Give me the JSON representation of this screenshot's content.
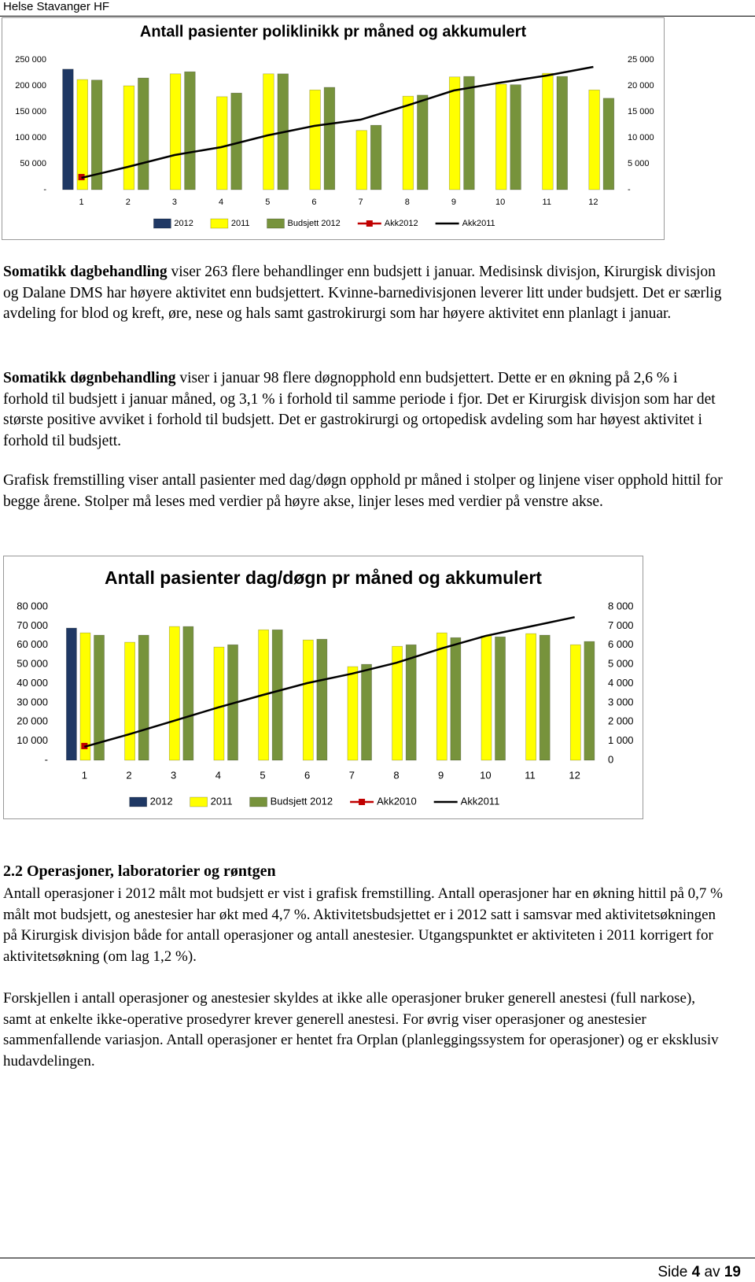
{
  "header": {
    "title": "Helse Stavanger HF"
  },
  "chart_data": [
    {
      "type": "bar",
      "title": "Antall pasienter poliklinikk pr måned og akkumulert",
      "categories": [
        "1",
        "2",
        "3",
        "4",
        "5",
        "6",
        "7",
        "8",
        "9",
        "10",
        "11",
        "12"
      ],
      "series": [
        {
          "name": "2012",
          "type": "bar",
          "color": "#1f3864",
          "axis": "y2",
          "values": [
            23200,
            null,
            null,
            null,
            null,
            null,
            null,
            null,
            null,
            null,
            null,
            null
          ]
        },
        {
          "name": "2011",
          "type": "bar",
          "color": "#ffff00",
          "axis": "y2",
          "values": [
            21200,
            20000,
            22300,
            17900,
            22300,
            19200,
            11400,
            18000,
            21700,
            20300,
            22400,
            19200
          ]
        },
        {
          "name": "Budsjett 2012",
          "type": "bar",
          "color": "#77933c",
          "axis": "y2",
          "values": [
            21100,
            21500,
            22700,
            18600,
            22300,
            19700,
            12400,
            18200,
            21800,
            20200,
            21800,
            17600
          ]
        },
        {
          "name": "Akk2012",
          "type": "line",
          "color": "#c00000",
          "marker": "square",
          "values": [
            24200,
            null,
            null,
            null,
            null,
            null,
            null,
            null,
            null,
            null,
            null,
            null
          ]
        },
        {
          "name": "Akk2011",
          "type": "line",
          "color": "#000000",
          "values": [
            22700,
            43900,
            66700,
            81800,
            104500,
            122700,
            134800,
            162100,
            190900,
            206100,
            219700,
            236400
          ]
        }
      ],
      "ylim": [
        0,
        250000
      ],
      "yticks": [
        {
          "value": 0,
          "label": "-"
        },
        {
          "value": 50000,
          "label": "50 000"
        },
        {
          "value": 100000,
          "label": "100 000"
        },
        {
          "value": 150000,
          "label": "150 000"
        },
        {
          "value": 200000,
          "label": "200 000"
        },
        {
          "value": 250000,
          "label": "250 000"
        }
      ],
      "y2lim": [
        0,
        25000
      ],
      "y2ticks": [
        {
          "value": 0,
          "label": "-"
        },
        {
          "value": 5000,
          "label": "5 000"
        },
        {
          "value": 10000,
          "label": "10 000"
        },
        {
          "value": 15000,
          "label": "15 000"
        },
        {
          "value": 20000,
          "label": "20 000"
        },
        {
          "value": 25000,
          "label": "25 000"
        }
      ],
      "legend": "bottom"
    },
    {
      "type": "bar",
      "title": "Antall pasienter dag/døgn pr måned og akkumulert",
      "categories": [
        "1",
        "2",
        "3",
        "4",
        "5",
        "6",
        "7",
        "8",
        "9",
        "10",
        "11",
        "12"
      ],
      "series": [
        {
          "name": "2012",
          "type": "bar",
          "color": "#1f3864",
          "axis": "y2",
          "values": [
            6890,
            null,
            null,
            null,
            null,
            null,
            null,
            null,
            null,
            null,
            null,
            null
          ]
        },
        {
          "name": "2011",
          "type": "bar",
          "color": "#ffff00",
          "axis": "y2",
          "values": [
            6640,
            6150,
            6970,
            5900,
            6800,
            6270,
            4880,
            5940,
            6640,
            6480,
            6600,
            6020
          ]
        },
        {
          "name": "Budsjett 2012",
          "type": "bar",
          "color": "#77933c",
          "axis": "y2",
          "values": [
            6520,
            6520,
            6970,
            6020,
            6800,
            6310,
            5000,
            6020,
            6390,
            6430,
            6520,
            6190
          ]
        },
        {
          "name": "Akk2010",
          "type": "line",
          "color": "#c00000",
          "marker": "square",
          "values": [
            7400,
            null,
            null,
            null,
            null,
            null,
            null,
            null,
            null,
            null,
            null,
            null
          ]
        },
        {
          "name": "Akk2011",
          "type": "line",
          "color": "#000000",
          "values": [
            7000,
            13500,
            20500,
            27500,
            34000,
            40200,
            45100,
            50800,
            58200,
            64800,
            69700,
            74600
          ]
        }
      ],
      "ylim": [
        0,
        80000
      ],
      "yticks": [
        {
          "value": 0,
          "label": "-"
        },
        {
          "value": 10000,
          "label": "10 000"
        },
        {
          "value": 20000,
          "label": "20 000"
        },
        {
          "value": 30000,
          "label": "30 000"
        },
        {
          "value": 40000,
          "label": "40 000"
        },
        {
          "value": 50000,
          "label": "50 000"
        },
        {
          "value": 60000,
          "label": "60 000"
        },
        {
          "value": 70000,
          "label": "70 000"
        },
        {
          "value": 80000,
          "label": "80 000"
        }
      ],
      "y2lim": [
        0,
        8000
      ],
      "y2ticks": [
        0,
        {
          "value": 1000,
          "label": "1 000"
        },
        {
          "value": 2000,
          "label": "2 000"
        },
        {
          "value": 3000,
          "label": "3 000"
        },
        {
          "value": 4000,
          "label": "4 000"
        },
        {
          "value": 5000,
          "label": "5 000"
        },
        {
          "value": 6000,
          "label": "6 000"
        },
        {
          "value": 7000,
          "label": "7 000"
        },
        {
          "value": 8000,
          "label": "8 000"
        }
      ],
      "legend": "bottom"
    }
  ],
  "paragraphs": [
    {
      "lead": "Somatikk dagbehandling",
      "text": "viser 263 flere behandlinger enn budsjett i januar. Medisinsk divisjon, Kirurgisk divisjon og Dalane DMS har høyere aktivitet enn budsjettert. Kvinne-barnedivisjonen leverer litt under budsjett. Det er særlig avdeling for blod og kreft, øre, nese og hals samt gastrokirurgi som har høyere aktivitet enn planlagt i januar."
    },
    {
      "lead": "Somatikk døgnbehandling",
      "text": "viser i januar 98 flere døgnopphold enn budsjettert. Dette er en økning på 2,6 % i forhold til budsjett i januar måned, og 3,1 % i forhold til samme periode i fjor. Det er Kirurgisk divisjon som har det største positive avviket i forhold til budsjett. Det er gastrokirurgi og ortopedisk avdeling som har høyest aktivitet i forhold til budsjett."
    },
    {
      "text": "Grafisk fremstilling viser antall pasienter med dag/døgn opphold pr måned i stolper og linjene viser opphold hittil for begge årene. Stolper må leses med verdier på høyre akse, linjer leses med verdier på venstre akse."
    }
  ],
  "section": {
    "number": "2.2",
    "title": "Operasjoner, laboratorier og røntgen",
    "paragraphs": [
      "Antall operasjoner i 2012 målt mot budsjett er vist i grafisk fremstilling. Antall operasjoner har en økning hittil på 0,7 % målt mot budsjett, og anestesier har økt med 4,7 %. Aktivitetsbudsjettet er i 2012 satt i samsvar med aktivitetsøkningen på Kirurgisk divisjon både for antall operasjoner og antall anestesier. Utgangspunktet er aktiviteten i 2011 korrigert for aktivitetsøkning (om lag 1,2 %).",
      "Forskjellen i antall operasjoner og anestesier skyldes at ikke alle operasjoner bruker generell anestesi (full narkose), samt at enkelte ikke-operative prosedyrer krever generell anestesi. For øvrig viser operasjoner og anestesier sammenfallende variasjon. Antall operasjoner er hentet fra Orplan (planleggingssystem for operasjoner) og er eksklusiv hudavdelingen."
    ]
  },
  "footer": {
    "label": "Side",
    "page": "4",
    "of": "av",
    "total": "19"
  }
}
